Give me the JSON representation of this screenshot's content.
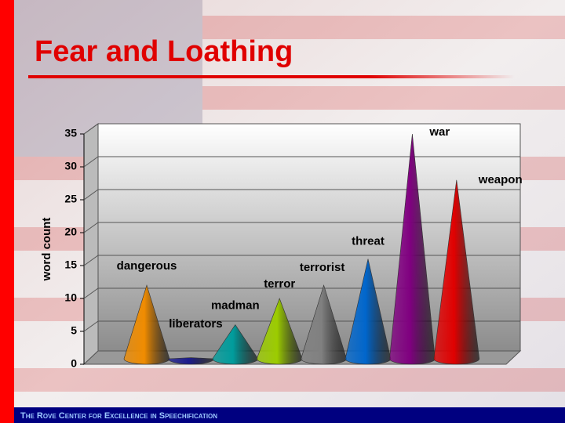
{
  "slide_title": "Fear and Loathing",
  "footer": "The Rove Center for Excellence in Speechification",
  "chart_data": {
    "type": "cone",
    "categories": [
      "dangerous",
      "liberators",
      "madman",
      "terror",
      "terrorist",
      "threat",
      "war",
      "weapon"
    ],
    "values": [
      12,
      1,
      6,
      10,
      12,
      16,
      35,
      28
    ],
    "colors": [
      "#f08c00",
      "#1c1c8c",
      "#009c9c",
      "#9ccc00",
      "#808080",
      "#0066cc",
      "#800080",
      "#e00000"
    ],
    "y_label": "word count",
    "ylim": [
      0,
      35
    ],
    "yticks": [
      0,
      5,
      10,
      15,
      20,
      25,
      30,
      35
    ],
    "grid": true
  }
}
